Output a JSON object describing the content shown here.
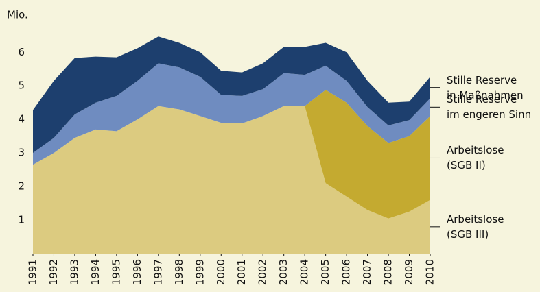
{
  "chart_data": {
    "type": "stacked-area",
    "y_label": "Mio.",
    "x": [
      1991,
      1992,
      1993,
      1994,
      1995,
      1996,
      1997,
      1998,
      1999,
      2000,
      2001,
      2002,
      2003,
      2004,
      2005,
      2006,
      2007,
      2008,
      2009,
      2010
    ],
    "xlim": [
      1991,
      2010
    ],
    "xticks": [
      1991,
      1992,
      1993,
      1994,
      1995,
      1996,
      1997,
      1998,
      1999,
      2000,
      2001,
      2002,
      2003,
      2004,
      2005,
      2006,
      2007,
      2008,
      2009,
      2010
    ],
    "ylim": [
      0,
      6.7
    ],
    "yticks": [
      1,
      2,
      3,
      4,
      5,
      6
    ],
    "series": [
      {
        "name": "Arbeitslose\n(SGB III)",
        "color": "#dccb80",
        "values": [
          2.65,
          3.0,
          3.45,
          3.7,
          3.65,
          4.0,
          4.4,
          4.3,
          4.1,
          3.9,
          3.88,
          4.1,
          4.4,
          4.4,
          2.1,
          1.7,
          1.3,
          1.05,
          1.25,
          1.6
        ]
      },
      {
        "name": "Arbeitslose\n(SGB II)",
        "color": "#c4aa30",
        "values": [
          null,
          null,
          null,
          null,
          null,
          null,
          null,
          null,
          null,
          null,
          null,
          null,
          null,
          0,
          2.78,
          2.8,
          2.5,
          2.25,
          2.25,
          2.5
        ]
      },
      {
        "name": "Stille Reserve\nim engeren Sinn",
        "color": "#6f8cc0",
        "values": [
          0.35,
          0.45,
          0.7,
          0.8,
          1.05,
          1.15,
          1.27,
          1.25,
          1.17,
          0.83,
          0.82,
          0.8,
          0.98,
          0.93,
          0.72,
          0.65,
          0.57,
          0.52,
          0.48,
          0.53
        ]
      },
      {
        "name": "Stille Reserve\nin Maßnahmen",
        "color": "#1d3f6e",
        "values": [
          1.28,
          1.7,
          1.68,
          1.37,
          1.15,
          0.97,
          0.8,
          0.73,
          0.73,
          0.72,
          0.7,
          0.77,
          0.78,
          0.83,
          0.68,
          0.85,
          0.78,
          0.68,
          0.55,
          0.64
        ]
      }
    ]
  }
}
